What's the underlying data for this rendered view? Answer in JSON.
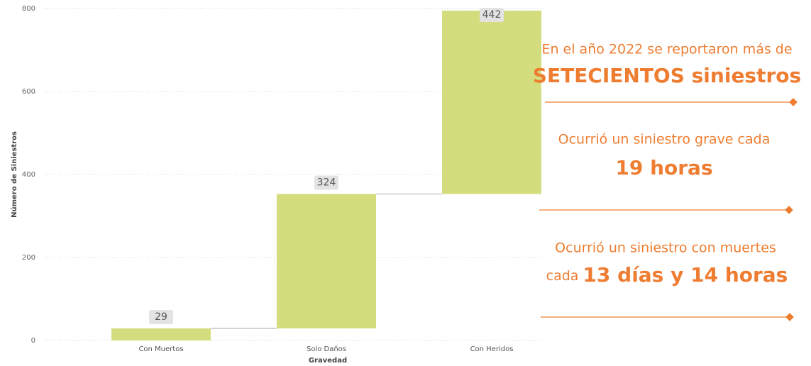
{
  "chart_data": {
    "type": "waterfall",
    "categories": [
      "Con Muertos",
      "Solo Daños",
      "Con Heridos"
    ],
    "values": [
      29,
      324,
      442
    ],
    "color": "#d4dd7e",
    "ylim": [
      0,
      800
    ],
    "yticks": [
      0,
      200,
      400,
      600,
      800
    ],
    "grid": true,
    "x_label": "Gravedad",
    "y_label": "Número de Siniestros",
    "annotations": [
      "En el año 2022 se reportaron más de",
      "SETECIENTOS siniestros",
      "Ocurrió un siniestro grave cada",
      "19 horas",
      "Ocurrió un siniestro con muertes",
      "cada",
      "13 días y 14 horas"
    ]
  }
}
